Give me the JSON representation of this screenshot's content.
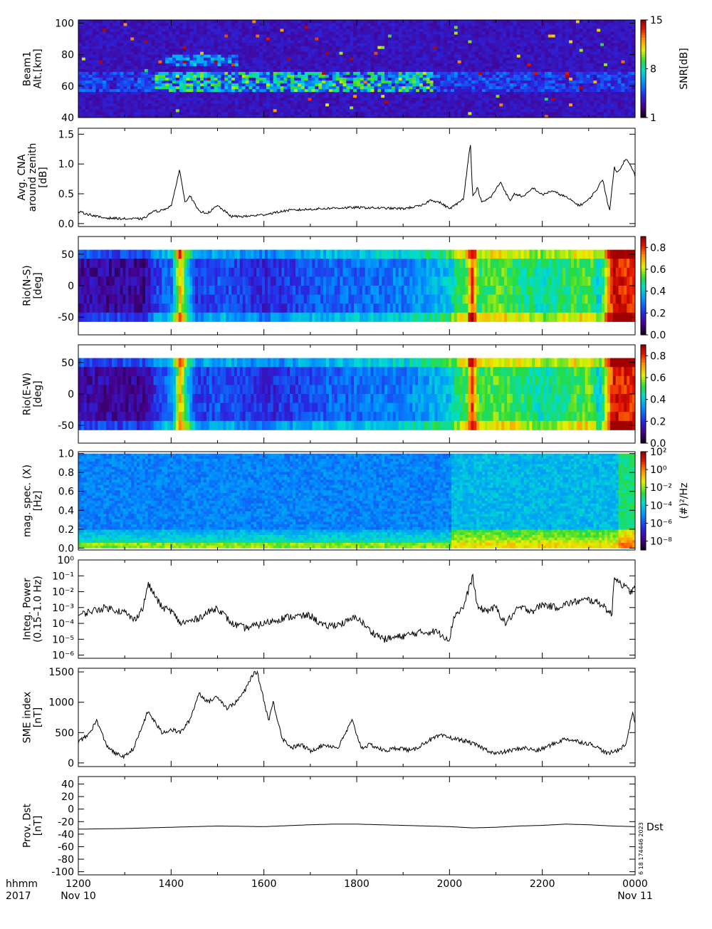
{
  "chart_data": [
    {
      "id": "beam1",
      "type": "heatmap",
      "ylabel_lines": [
        "Beam1",
        "Alt.[km]"
      ],
      "yticks": [
        "40",
        "60",
        "80",
        "100"
      ],
      "ylim": [
        40,
        102
      ],
      "colorbar": {
        "label": "SNR[dB]",
        "ticks": [
          "1",
          "8",
          "15"
        ],
        "range": [
          1,
          15
        ],
        "palette": "rainbow"
      },
      "description_pattern": {
        "base": 1.5,
        "enhanced_layers_km": [
          [
            58,
            68
          ],
          [
            74,
            80
          ]
        ],
        "sporadic_points": true
      }
    },
    {
      "id": "cna",
      "type": "line",
      "ylabel_lines": [
        "Avg. CNA",
        "around zenith",
        "[dB]"
      ],
      "yticks": [
        "0.0",
        "0.5",
        "1.0",
        "1.5"
      ],
      "ylim": [
        -0.05,
        1.6
      ],
      "x": [
        12.0,
        12.5,
        13.0,
        13.4,
        13.6,
        13.8,
        14.0,
        14.1,
        14.18,
        14.3,
        14.4,
        14.6,
        14.8,
        15.0,
        15.3,
        15.6,
        16.0,
        16.5,
        17.0,
        17.5,
        18.0,
        18.5,
        19.0,
        19.4,
        19.6,
        19.8,
        20.0,
        20.2,
        20.3,
        20.45,
        20.5,
        20.6,
        20.7,
        20.9,
        21.1,
        21.3,
        21.4,
        21.6,
        21.8,
        22.0,
        22.2,
        22.5,
        22.8,
        23.0,
        23.2,
        23.3,
        23.45,
        23.55,
        23.6,
        23.7,
        23.8,
        23.95,
        24.0
      ],
      "y": [
        0.2,
        0.1,
        0.08,
        0.08,
        0.2,
        0.22,
        0.3,
        0.6,
        0.92,
        0.35,
        0.48,
        0.2,
        0.18,
        0.3,
        0.12,
        0.12,
        0.15,
        0.22,
        0.24,
        0.26,
        0.27,
        0.26,
        0.25,
        0.3,
        0.4,
        0.35,
        0.25,
        0.35,
        0.42,
        1.35,
        0.45,
        0.6,
        0.35,
        0.45,
        0.7,
        0.38,
        0.5,
        0.45,
        0.6,
        0.48,
        0.55,
        0.45,
        0.3,
        0.4,
        0.6,
        0.75,
        0.2,
        0.95,
        0.85,
        0.95,
        1.1,
        0.9,
        0.8
      ]
    },
    {
      "id": "rio_ns",
      "type": "heatmap",
      "ylabel_lines": [
        "Rio(N-S)",
        "[deg]"
      ],
      "yticks": [
        "-50",
        "0",
        "50"
      ],
      "ylim": [
        -78,
        78
      ],
      "data_range_deg": [
        -57,
        57
      ],
      "colorbar": {
        "label": "",
        "ticks": [
          "0.0",
          "0.2",
          "0.4",
          "0.6",
          "0.8"
        ],
        "range": [
          0,
          0.9
        ],
        "palette": "rainbow"
      },
      "time_profile": [
        [
          12.0,
          0.12
        ],
        [
          13.4,
          0.1
        ],
        [
          13.6,
          0.2
        ],
        [
          14.0,
          0.3
        ],
        [
          14.15,
          0.7
        ],
        [
          14.3,
          0.45
        ],
        [
          14.5,
          0.2
        ],
        [
          15.0,
          0.25
        ],
        [
          16.0,
          0.18
        ],
        [
          17.0,
          0.25
        ],
        [
          18.0,
          0.28
        ],
        [
          19.0,
          0.3
        ],
        [
          19.9,
          0.38
        ],
        [
          20.35,
          0.55
        ],
        [
          20.45,
          0.8
        ],
        [
          20.6,
          0.5
        ],
        [
          21.0,
          0.55
        ],
        [
          21.5,
          0.5
        ],
        [
          22.0,
          0.45
        ],
        [
          22.5,
          0.5
        ],
        [
          23.0,
          0.55
        ],
        [
          23.2,
          0.4
        ],
        [
          23.5,
          0.85
        ],
        [
          24.0,
          0.8
        ]
      ]
    },
    {
      "id": "rio_ew",
      "type": "heatmap",
      "ylabel_lines": [
        "Rio(E-W)",
        "[deg]"
      ],
      "yticks": [
        "-50",
        "0",
        "50"
      ],
      "ylim": [
        -78,
        78
      ],
      "data_range_deg": [
        -57,
        57
      ],
      "colorbar": {
        "label": "",
        "ticks": [
          "0.0",
          "0.2",
          "0.4",
          "0.6",
          "0.8"
        ],
        "range": [
          0,
          0.9
        ],
        "palette": "rainbow"
      },
      "time_profile": [
        [
          12.0,
          0.12
        ],
        [
          13.4,
          0.1
        ],
        [
          13.6,
          0.2
        ],
        [
          14.0,
          0.3
        ],
        [
          14.15,
          0.7
        ],
        [
          14.3,
          0.45
        ],
        [
          14.5,
          0.2
        ],
        [
          15.0,
          0.25
        ],
        [
          16.0,
          0.18
        ],
        [
          17.0,
          0.25
        ],
        [
          18.0,
          0.28
        ],
        [
          19.0,
          0.3
        ],
        [
          19.9,
          0.38
        ],
        [
          20.35,
          0.55
        ],
        [
          20.45,
          0.8
        ],
        [
          20.6,
          0.5
        ],
        [
          21.0,
          0.55
        ],
        [
          21.5,
          0.5
        ],
        [
          22.0,
          0.45
        ],
        [
          22.5,
          0.5
        ],
        [
          23.0,
          0.55
        ],
        [
          23.2,
          0.4
        ],
        [
          23.5,
          0.85
        ],
        [
          24.0,
          0.8
        ]
      ]
    },
    {
      "id": "mag_spec",
      "type": "heatmap",
      "ylabel_lines": [
        "mag. spec. (X)",
        "[Hz]"
      ],
      "yticks": [
        "0.0",
        "0.2",
        "0.4",
        "0.6",
        "0.8",
        "1.0"
      ],
      "ylim": [
        -0.02,
        1.02
      ],
      "colorbar": {
        "label": "(#)²/Hz",
        "ticks": [
          "10⁻⁸",
          "10⁻⁶",
          "10⁻⁴",
          "10⁻²",
          "10⁰",
          "10²"
        ],
        "range": [
          -9,
          2
        ],
        "palette": "rainbow"
      },
      "description_pattern": {
        "low_freq_enhancement": true,
        "active_interval_h": [
          20.0,
          24.0
        ]
      }
    },
    {
      "id": "integ_power",
      "type": "line",
      "ylabel_lines": [
        "Integ. Power",
        "(0.15–1.0 Hz)"
      ],
      "yscale": "log",
      "yticks": [
        "10⁻⁶",
        "10⁻⁵",
        "10⁻⁴",
        "10⁻³",
        "10⁻²",
        "10⁻¹",
        "10⁰"
      ],
      "ylim_log10": [
        -6.2,
        0
      ],
      "x": [
        12.0,
        12.3,
        12.6,
        13.0,
        13.2,
        13.4,
        13.5,
        13.6,
        13.8,
        14.0,
        14.2,
        14.5,
        14.8,
        15.0,
        15.3,
        15.6,
        16.0,
        16.5,
        17.0,
        17.3,
        17.7,
        18.0,
        18.3,
        18.6,
        19.0,
        19.3,
        19.7,
        20.0,
        20.1,
        20.3,
        20.5,
        20.6,
        20.8,
        21.0,
        21.2,
        21.5,
        21.8,
        22.0,
        22.3,
        22.6,
        23.0,
        23.3,
        23.5,
        23.55,
        23.7,
        23.9,
        24.0
      ],
      "y_log10": [
        -3.5,
        -3.2,
        -3.0,
        -3.3,
        -3.8,
        -3.0,
        -1.5,
        -2.0,
        -3.0,
        -3.2,
        -4.0,
        -3.8,
        -3.3,
        -3.0,
        -4.0,
        -4.3,
        -4.0,
        -3.6,
        -3.5,
        -4.2,
        -4.0,
        -3.6,
        -4.5,
        -5.0,
        -4.8,
        -4.6,
        -4.5,
        -5.0,
        -3.5,
        -3.0,
        -1.0,
        -3.0,
        -3.2,
        -3.0,
        -4.0,
        -3.0,
        -3.2,
        -2.8,
        -3.0,
        -2.7,
        -2.5,
        -2.8,
        -3.5,
        -1.0,
        -1.5,
        -2.0,
        -1.8
      ]
    },
    {
      "id": "sme",
      "type": "line",
      "ylabel_lines": [
        "SME index",
        "[nT]"
      ],
      "yticks": [
        "0",
        "500",
        "1000",
        "1500"
      ],
      "ylim": [
        -60,
        1560
      ],
      "x": [
        12.0,
        12.2,
        12.4,
        12.6,
        12.8,
        13.0,
        13.2,
        13.5,
        13.8,
        14.0,
        14.2,
        14.4,
        14.6,
        14.8,
        15.0,
        15.2,
        15.4,
        15.6,
        15.75,
        15.85,
        15.95,
        16.1,
        16.2,
        16.4,
        16.6,
        16.8,
        17.0,
        17.3,
        17.6,
        17.9,
        18.1,
        18.3,
        18.6,
        18.9,
        19.2,
        19.5,
        19.8,
        20.1,
        20.4,
        20.7,
        21.0,
        21.3,
        21.6,
        21.9,
        22.2,
        22.5,
        22.8,
        23.1,
        23.4,
        23.6,
        23.8,
        23.95,
        24.0
      ],
      "y": [
        350,
        450,
        700,
        300,
        150,
        100,
        250,
        850,
        500,
        550,
        500,
        700,
        1150,
        1000,
        1100,
        900,
        1000,
        1200,
        1450,
        1500,
        1200,
        700,
        1000,
        400,
        250,
        300,
        200,
        300,
        250,
        700,
        250,
        300,
        200,
        250,
        200,
        350,
        450,
        400,
        350,
        250,
        150,
        200,
        250,
        200,
        300,
        400,
        350,
        300,
        150,
        200,
        300,
        850,
        650
      ]
    },
    {
      "id": "dst",
      "type": "line",
      "ylabel_lines": [
        "Prov. Dst",
        "[nT]"
      ],
      "yticks": [
        "-100",
        "-80",
        "-60",
        "-40",
        "-20",
        "0",
        "20",
        "40"
      ],
      "ylim": [
        -105,
        52
      ],
      "series_label": "Dst",
      "x": [
        12.0,
        13.0,
        14.0,
        15.0,
        16.0,
        17.0,
        17.5,
        18.0,
        18.5,
        19.0,
        19.5,
        20.0,
        20.5,
        21.0,
        21.5,
        22.0,
        22.5,
        23.0,
        23.5,
        24.0
      ],
      "y": [
        -32,
        -31,
        -29,
        -27,
        -28,
        -25,
        -24,
        -24,
        -25,
        -26,
        -27,
        -28,
        -30,
        -29,
        -27,
        -26,
        -24,
        -25,
        -27,
        -28
      ]
    }
  ],
  "time_axis": {
    "hour_ticks": [
      "1200",
      "1400",
      "1600",
      "1800",
      "2000",
      "2200",
      "0000"
    ],
    "left_label_top": "hhmm",
    "left_label_bottom": "2017",
    "start_date": "Nov 10",
    "end_date": "Nov 11"
  },
  "stamp": "6 18 174446 2023"
}
